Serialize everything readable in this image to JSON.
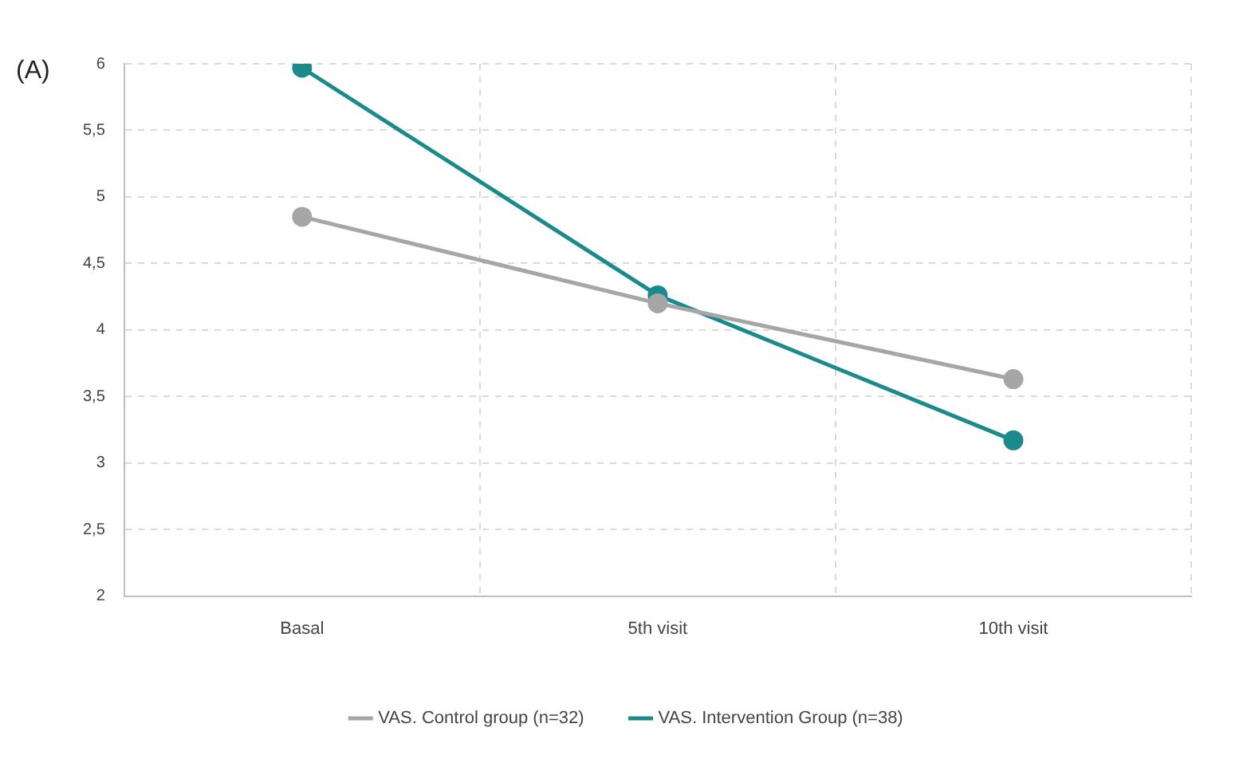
{
  "chart_data": {
    "type": "line",
    "annotations": [
      "(A)"
    ],
    "categories": [
      "Basal",
      "5th visit",
      "10th visit"
    ],
    "series": [
      {
        "name": "VAS. Control group (n=32)",
        "color": "#a6a6a6",
        "values": [
          4.85,
          4.2,
          3.63
        ]
      },
      {
        "name": "VAS. Intervention Group (n=38)",
        "color": "#1a8a8a",
        "values": [
          5.97,
          4.26,
          3.17
        ]
      }
    ],
    "ylim": [
      2,
      6
    ],
    "yticks": [
      2,
      {
        "value": 2.5,
        "label": "2,5"
      },
      3,
      {
        "value": 3.5,
        "label": "3,5"
      },
      4,
      {
        "value": 4.5,
        "label": "4,5"
      },
      5,
      {
        "value": 5.5,
        "label": "5,5"
      },
      6
    ],
    "grid": true,
    "legend": "bottom",
    "marker": "circle",
    "line_style": "solid"
  }
}
